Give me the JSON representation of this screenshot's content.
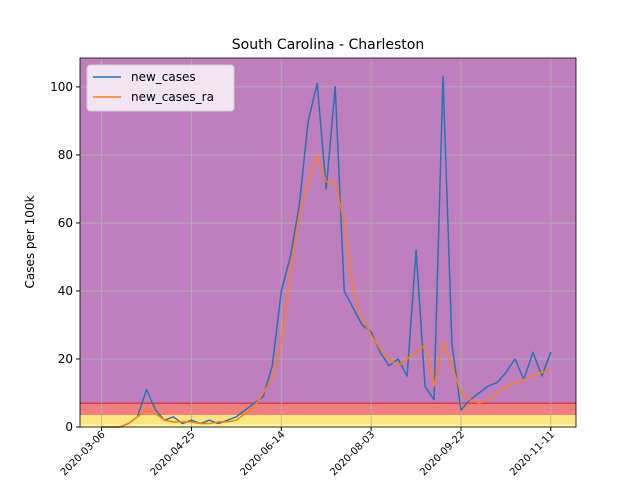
{
  "chart_data": {
    "type": "line",
    "title": "South Carolina - Charleston",
    "ylabel": "Cases per 100k",
    "x": [
      "2020-03-06",
      "2020-03-11",
      "2020-03-16",
      "2020-03-21",
      "2020-03-26",
      "2020-03-31",
      "2020-04-05",
      "2020-04-10",
      "2020-04-15",
      "2020-04-20",
      "2020-04-25",
      "2020-04-30",
      "2020-05-05",
      "2020-05-10",
      "2020-05-15",
      "2020-05-20",
      "2020-05-25",
      "2020-05-30",
      "2020-06-04",
      "2020-06-09",
      "2020-06-14",
      "2020-06-19",
      "2020-06-24",
      "2020-06-29",
      "2020-07-04",
      "2020-07-09",
      "2020-07-14",
      "2020-07-19",
      "2020-07-24",
      "2020-07-29",
      "2020-08-03",
      "2020-08-08",
      "2020-08-13",
      "2020-08-18",
      "2020-08-23",
      "2020-08-28",
      "2020-09-02",
      "2020-09-07",
      "2020-09-12",
      "2020-09-17",
      "2020-09-22",
      "2020-09-27",
      "2020-10-02",
      "2020-10-07",
      "2020-10-12",
      "2020-10-17",
      "2020-10-22",
      "2020-10-27",
      "2020-11-01",
      "2020-11-06",
      "2020-11-11"
    ],
    "series": [
      {
        "name": "new_cases",
        "color": "#1f77b4",
        "values": [
          0,
          0,
          0,
          1,
          3,
          11,
          5,
          2,
          3,
          1,
          2,
          1,
          2,
          1,
          2,
          3,
          5,
          7,
          9,
          18,
          40,
          50,
          65,
          90,
          101,
          70,
          100,
          40,
          35,
          30,
          28,
          22,
          18,
          20,
          15,
          52,
          12,
          8,
          103,
          24,
          5,
          8,
          10,
          12,
          13,
          16,
          20,
          14,
          22,
          15,
          22
        ]
      },
      {
        "name": "new_cases_ra",
        "color": "#ff7f0e",
        "values": [
          0,
          0,
          0,
          1,
          3,
          5,
          4,
          2,
          1.5,
          1.5,
          1.5,
          1,
          1,
          1.5,
          1.5,
          2,
          4,
          6,
          10,
          14,
          25,
          45,
          62,
          72,
          80,
          72,
          72,
          60,
          40,
          32,
          27,
          23,
          20,
          18,
          20,
          22,
          24,
          12,
          25,
          18,
          10,
          8,
          7,
          8,
          10,
          12,
          13,
          14,
          15,
          16,
          17
        ]
      }
    ],
    "xlim": [
      "2020-02-23",
      "2020-11-25"
    ],
    "xticks": [
      "2020-03-06",
      "2020-04-25",
      "2020-06-14",
      "2020-08-03",
      "2020-09-22",
      "2020-11-11"
    ],
    "ylim": [
      0,
      108.5
    ],
    "yticks": [
      0,
      20,
      40,
      60,
      80,
      100
    ],
    "grid": true,
    "legend": "upper left",
    "bands": [
      {
        "from": 7,
        "to": 108.5,
        "color": "#bf7fbf"
      },
      {
        "from": 3.5,
        "to": 7,
        "color": "#f08080"
      },
      {
        "from": 0.7,
        "to": 3.5,
        "color": "#ffe680"
      },
      {
        "from": 0,
        "to": 0.7,
        "color": "#ffff99"
      }
    ],
    "lines": [
      {
        "value": 7,
        "color": "#d62728"
      }
    ]
  }
}
